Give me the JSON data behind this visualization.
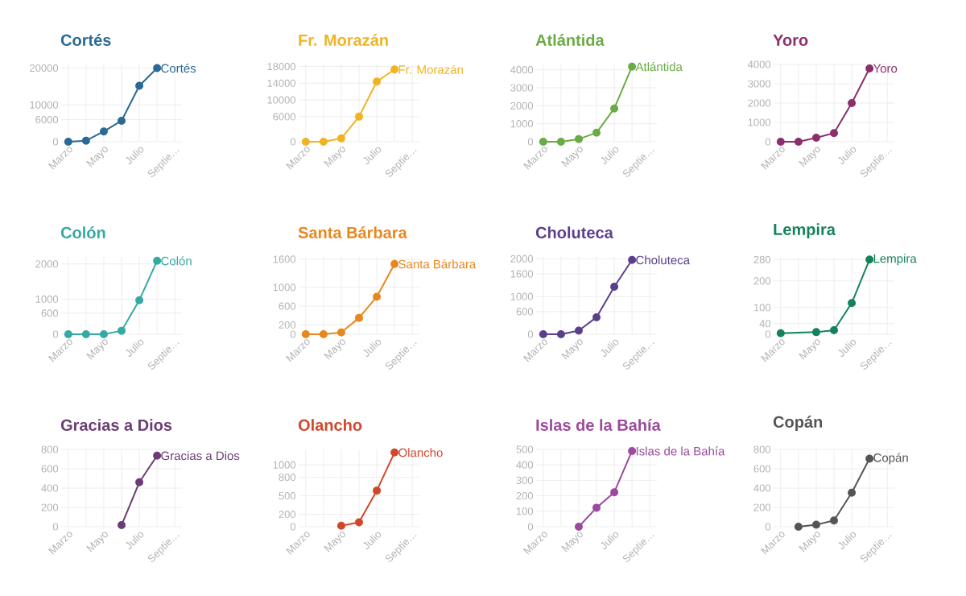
{
  "chart_data": [
    {
      "type": "line",
      "title": "Cortés",
      "categories": [
        "Marzo",
        null,
        "Mayo",
        null,
        "Julio",
        null,
        "Septie…"
      ],
      "series": [
        {
          "name": "Cortés",
          "color": "#2a6a94",
          "values": [
            0,
            300,
            2800,
            5700,
            15200,
            20000,
            null
          ]
        }
      ],
      "ylim": [
        0,
        21000
      ],
      "yticks": [
        0,
        6000,
        10000,
        20000
      ],
      "grid": true,
      "marker": "circle"
    },
    {
      "type": "line",
      "title": "Fr. Morazán",
      "categories": [
        "Marzo",
        null,
        "Mayo",
        null,
        "Julio",
        null,
        "Septie…"
      ],
      "series": [
        {
          "name": "Fr. Morazán",
          "color": "#f0b323",
          "values": [
            0,
            0,
            800,
            6000,
            14400,
            17300,
            null
          ]
        }
      ],
      "ylim": [
        0,
        18500
      ],
      "yticks": [
        0,
        6000,
        10000,
        14000,
        18000
      ],
      "grid": true,
      "marker": "circle"
    },
    {
      "type": "line",
      "title": "Atlántida",
      "categories": [
        "Marzo",
        null,
        "Mayo",
        null,
        "Julio",
        null,
        "Septie…"
      ],
      "series": [
        {
          "name": "Atlántida",
          "color": "#6aab45",
          "values": [
            0,
            0,
            150,
            500,
            1850,
            4180,
            null
          ]
        }
      ],
      "ylim": [
        0,
        4300
      ],
      "yticks": [
        0,
        1000,
        2000,
        3000,
        4000
      ],
      "grid": true,
      "marker": "circle"
    },
    {
      "type": "line",
      "title": "Yoro",
      "categories": [
        "Marzo",
        null,
        "Mayo",
        null,
        "Julio",
        null,
        "Septie…"
      ],
      "series": [
        {
          "name": "Yoro",
          "color": "#8b2f6b",
          "values": [
            0,
            0,
            210,
            450,
            2000,
            3790,
            null
          ]
        }
      ],
      "ylim": [
        0,
        4000
      ],
      "yticks": [
        0,
        1000,
        2000,
        3000,
        4000
      ],
      "grid": true,
      "marker": "circle"
    },
    {
      "type": "line",
      "title": "Colón",
      "categories": [
        "Marzo",
        null,
        "Mayo",
        null,
        "Julio",
        null,
        "Septie…"
      ],
      "series": [
        {
          "name": "Colón",
          "color": "#35a9a4",
          "values": [
            0,
            0,
            0,
            100,
            970,
            2090,
            null
          ]
        }
      ],
      "ylim": [
        0,
        2200
      ],
      "yticks": [
        0,
        600,
        1000,
        2000
      ],
      "grid": true,
      "marker": "circle"
    },
    {
      "type": "line",
      "title": "Santa Bárbara",
      "categories": [
        "Marzo",
        null,
        "Mayo",
        null,
        "Julio",
        null,
        "Septie…"
      ],
      "series": [
        {
          "name": "Santa Bárbara",
          "color": "#e8871e",
          "values": [
            0,
            0,
            40,
            350,
            800,
            1500,
            null
          ]
        }
      ],
      "ylim": [
        0,
        1650
      ],
      "yticks": [
        0,
        200,
        600,
        1000,
        1600
      ],
      "grid": true,
      "marker": "circle"
    },
    {
      "type": "line",
      "title": "Choluteca",
      "categories": [
        "Marzo",
        null,
        "Mayo",
        null,
        "Julio",
        null,
        "Septie…"
      ],
      "series": [
        {
          "name": "Choluteca",
          "color": "#5b3f8c",
          "values": [
            0,
            0,
            95,
            450,
            1260,
            1970,
            null
          ]
        }
      ],
      "ylim": [
        0,
        2050
      ],
      "yticks": [
        0,
        600,
        1000,
        1600,
        2000
      ],
      "grid": true,
      "marker": "circle"
    },
    {
      "type": "line",
      "title": "Lempira",
      "categories": [
        "Marzo",
        null,
        "Mayo",
        null,
        "Julio",
        null,
        "Septie…"
      ],
      "series": [
        {
          "name": "Lempira",
          "color": "#15835a",
          "values": [
            4,
            null,
            8,
            15,
            117,
            280,
            null
          ]
        }
      ],
      "ylim": [
        0,
        290
      ],
      "yticks": [
        0,
        40,
        100,
        200,
        280
      ],
      "grid": true,
      "marker": "circle"
    },
    {
      "type": "line",
      "title": "Gracias a Dios",
      "categories": [
        "Marzo",
        null,
        "Mayo",
        null,
        "Julio",
        null,
        "Septie…"
      ],
      "series": [
        {
          "name": "Gracias a Dios",
          "color": "#6b3d74",
          "values": [
            null,
            null,
            null,
            16,
            460,
            736,
            null
          ]
        }
      ],
      "ylim": [
        0,
        800
      ],
      "yticks": [
        0,
        200,
        400,
        600,
        800
      ],
      "grid": true,
      "marker": "circle"
    },
    {
      "type": "line",
      "title": "Olancho",
      "categories": [
        "Marzo",
        null,
        "Mayo",
        null,
        "Julio",
        null,
        "Septie…"
      ],
      "series": [
        {
          "name": "Olancho",
          "color": "#d1472b",
          "values": [
            null,
            null,
            16,
            72,
            584,
            1200,
            null
          ]
        }
      ],
      "ylim": [
        0,
        1250
      ],
      "yticks": [
        0,
        200,
        500,
        800,
        1000
      ],
      "grid": true,
      "marker": "circle"
    },
    {
      "type": "line",
      "title": "Islas de la Bahía",
      "categories": [
        "Marzo",
        null,
        "Mayo",
        null,
        "Julio",
        null,
        "Septie…"
      ],
      "series": [
        {
          "name": "Islas de la Bahía",
          "color": "#9b4a9c",
          "values": [
            null,
            null,
            0,
            123,
            223,
            490,
            null
          ]
        }
      ],
      "ylim": [
        0,
        500
      ],
      "yticks": [
        0,
        100,
        200,
        300,
        400,
        500
      ],
      "grid": true,
      "marker": "circle"
    },
    {
      "type": "line",
      "title": "Copán",
      "categories": [
        "Marzo",
        null,
        "Mayo",
        null,
        "Julio",
        null,
        "Septie…"
      ],
      "series": [
        {
          "name": "Copán",
          "color": "#555555",
          "values": [
            null,
            0,
            21,
            64,
            352,
            704,
            null
          ]
        }
      ],
      "ylim": [
        0,
        800
      ],
      "yticks": [
        0,
        200,
        400,
        600,
        800
      ],
      "grid": true,
      "marker": "circle"
    }
  ]
}
